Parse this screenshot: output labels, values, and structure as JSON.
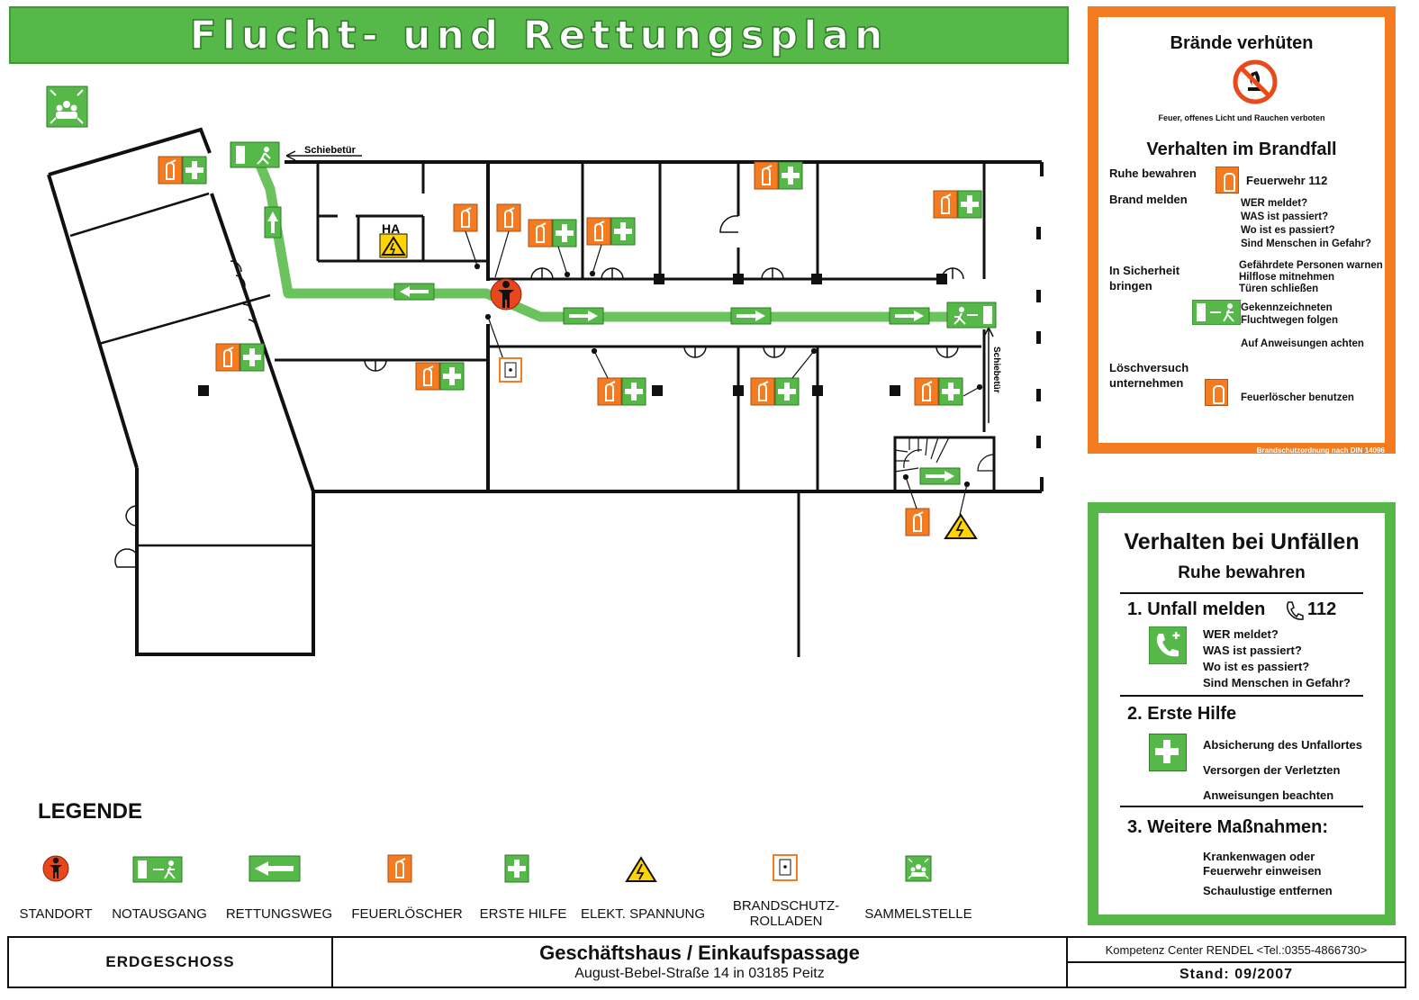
{
  "title": "Flucht- und Rettungsplan",
  "plan": {
    "sliding_door_top": "Schiebetür",
    "sliding_door_right": "Schiebetür",
    "ha_label": "HA"
  },
  "fire_prevention": {
    "heading": "Brände verhüten",
    "no_fire_caption": "Feuer, offenes Licht und Rauchen verboten",
    "behavior_heading": "Verhalten im Brandfall",
    "stay_calm": "Ruhe bewahren",
    "fire_dept": "Feuerwehr 112",
    "report_fire": "Brand melden",
    "report_questions": [
      "WER meldet?",
      "WAS ist passiert?",
      "Wo ist es passiert?",
      "Sind Menschen in Gefahr?"
    ],
    "safety_label": [
      "In Sicherheit",
      "bringen"
    ],
    "safety_items": [
      "Gefährdete Personen warnen",
      "Hilflose mitnehmen",
      "Türen schließen"
    ],
    "escape_items": [
      "Gekennzeichneten",
      "Fluchtwegen folgen"
    ],
    "instructions": "Auf Anweisungen achten",
    "extinguish_label": [
      "Löschversuch",
      "unternehmen"
    ],
    "use_extinguisher": "Feuerlöscher benutzen",
    "footer_note": "Brandschutzordnung nach DIN 14096"
  },
  "accident": {
    "heading": "Verhalten bei Unfällen",
    "subheading": "Ruhe bewahren",
    "step1": "1. Unfall melden",
    "step1_number": "112",
    "step1_items": [
      "WER meldet?",
      "WAS ist passiert?",
      "Wo ist es passiert?",
      "Sind Menschen in Gefahr?"
    ],
    "step2": "2. Erste Hilfe",
    "step2_items": [
      "Absicherung des Unfallortes",
      "Versorgen der Verletzten",
      "Anweisungen beachten"
    ],
    "step3": "3. Weitere Maßnahmen:",
    "step3_items": [
      "Krankenwagen oder",
      "Feuerwehr einweisen",
      "Schaulustige entfernen"
    ]
  },
  "legend": {
    "title": "LEGENDE",
    "items": [
      "STANDORT",
      "NOTAUSGANG",
      "RETTUNGSWEG",
      "FEUERLÖSCHER",
      "ERSTE HILFE",
      "ELEKT. SPANNUNG",
      "BRANDSCHUTZ-",
      "ROLLADEN",
      "SAMMELSTELLE"
    ]
  },
  "footer": {
    "floor": "ERDGESCHOSS",
    "building": "Geschäftshaus / Einkaufspassage",
    "address": "August-Bebel-Straße 14  in 03185 Peitz",
    "company": "Kompetenz Center RENDEL <Tel.:0355-4866730>",
    "date": "Stand: 09/2007"
  },
  "colors": {
    "green": "#55b848",
    "orange": "#f47b20",
    "standort_red": "#e8461c",
    "warning_yellow": "#ffd400"
  }
}
